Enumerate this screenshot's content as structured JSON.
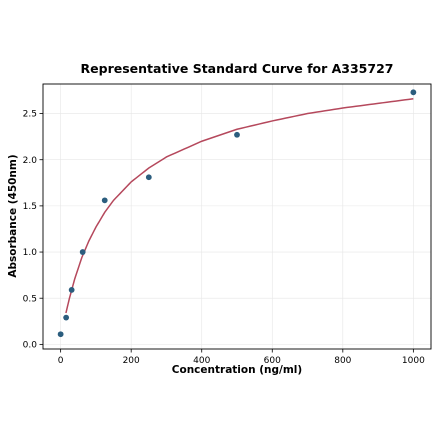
{
  "chart_data": {
    "type": "scatter",
    "title": "Representative Standard Curve for A335727",
    "xlabel": "Concentration (ng/ml)",
    "ylabel": "Absorbance (450nm)",
    "xlim": [
      -50,
      1050
    ],
    "ylim": [
      -0.05,
      2.82
    ],
    "xticks": [
      0,
      200,
      400,
      600,
      800,
      1000
    ],
    "yticks": [
      0.0,
      0.5,
      1.0,
      1.5,
      2.0,
      2.5
    ],
    "xtick_labels": [
      "0",
      "200",
      "400",
      "600",
      "800",
      "1000"
    ],
    "ytick_labels": [
      "0.0",
      "0.5",
      "1.0",
      "1.5",
      "2.0",
      "2.5"
    ],
    "grid": true,
    "legend": "none",
    "point_color": "#2b5d7e",
    "curve_color": "#b5485c",
    "points": [
      {
        "x": 0,
        "y": 0.11
      },
      {
        "x": 15.6,
        "y": 0.29
      },
      {
        "x": 31.25,
        "y": 0.59
      },
      {
        "x": 62.5,
        "y": 1.0
      },
      {
        "x": 125,
        "y": 1.56
      },
      {
        "x": 250,
        "y": 1.81
      },
      {
        "x": 500,
        "y": 2.27
      },
      {
        "x": 1000,
        "y": 2.73
      }
    ],
    "fit_curve": {
      "x": [
        15,
        25,
        40,
        60,
        80,
        100,
        125,
        150,
        200,
        250,
        300,
        400,
        500,
        600,
        700,
        800,
        900,
        1000
      ],
      "y": [
        0.34,
        0.5,
        0.71,
        0.94,
        1.12,
        1.27,
        1.43,
        1.56,
        1.76,
        1.91,
        2.03,
        2.2,
        2.33,
        2.42,
        2.5,
        2.56,
        2.61,
        2.66
      ]
    }
  }
}
